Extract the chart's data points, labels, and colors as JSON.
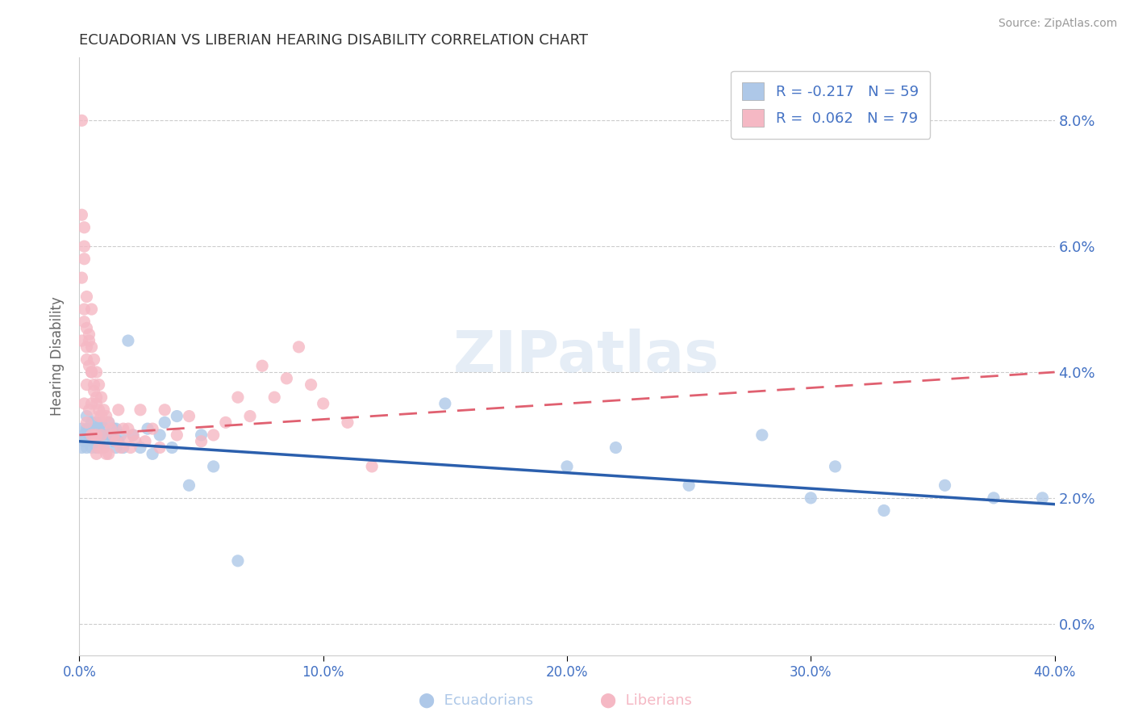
{
  "title": "ECUADORIAN VS LIBERIAN HEARING DISABILITY CORRELATION CHART",
  "source": "Source: ZipAtlas.com",
  "ylabel": "Hearing Disability",
  "xlim": [
    0.0,
    0.4
  ],
  "ylim": [
    -0.005,
    0.09
  ],
  "yticks": [
    0.0,
    0.02,
    0.04,
    0.06,
    0.08
  ],
  "xticks": [
    0.0,
    0.1,
    0.2,
    0.3,
    0.4
  ],
  "background_color": "#ffffff",
  "grid_color": "#cccccc",
  "title_color": "#333333",
  "axis_label_color": "#4472c4",
  "ecuadorians_color": "#aec8e8",
  "liberians_color": "#f5b8c4",
  "ecuadorians_line_color": "#2b5fad",
  "liberians_line_color": "#e06070",
  "legend_r1": "R = -0.217",
  "legend_n1": "N = 59",
  "legend_r2": "R = 0.062",
  "legend_n2": "N = 79",
  "watermark": "ZIPatlas",
  "ecu_trend_x0": 0.0,
  "ecu_trend_y0": 0.029,
  "ecu_trend_x1": 0.4,
  "ecu_trend_y1": 0.019,
  "lib_trend_x0": 0.0,
  "lib_trend_y0": 0.03,
  "lib_trend_x1": 0.4,
  "lib_trend_y1": 0.04,
  "ecuadorians_x": [
    0.001,
    0.001,
    0.002,
    0.002,
    0.003,
    0.003,
    0.003,
    0.004,
    0.004,
    0.005,
    0.005,
    0.005,
    0.006,
    0.006,
    0.007,
    0.007,
    0.007,
    0.008,
    0.008,
    0.008,
    0.009,
    0.009,
    0.01,
    0.01,
    0.01,
    0.011,
    0.012,
    0.013,
    0.014,
    0.014,
    0.015,
    0.015,
    0.016,
    0.017,
    0.018,
    0.02,
    0.022,
    0.025,
    0.028,
    0.03,
    0.033,
    0.035,
    0.038,
    0.04,
    0.045,
    0.05,
    0.055,
    0.065,
    0.15,
    0.2,
    0.22,
    0.25,
    0.28,
    0.3,
    0.31,
    0.33,
    0.355,
    0.375,
    0.395
  ],
  "ecuadorians_y": [
    0.028,
    0.031,
    0.03,
    0.029,
    0.031,
    0.028,
    0.033,
    0.03,
    0.031,
    0.029,
    0.032,
    0.028,
    0.031,
    0.029,
    0.03,
    0.028,
    0.032,
    0.029,
    0.031,
    0.028,
    0.03,
    0.032,
    0.029,
    0.031,
    0.028,
    0.03,
    0.032,
    0.03,
    0.031,
    0.029,
    0.028,
    0.031,
    0.029,
    0.03,
    0.028,
    0.045,
    0.03,
    0.028,
    0.031,
    0.027,
    0.03,
    0.032,
    0.028,
    0.033,
    0.022,
    0.03,
    0.025,
    0.01,
    0.035,
    0.025,
    0.028,
    0.022,
    0.03,
    0.02,
    0.025,
    0.018,
    0.022,
    0.02,
    0.02
  ],
  "liberians_x": [
    0.001,
    0.001,
    0.001,
    0.001,
    0.002,
    0.002,
    0.002,
    0.002,
    0.003,
    0.003,
    0.003,
    0.003,
    0.004,
    0.004,
    0.004,
    0.005,
    0.005,
    0.005,
    0.005,
    0.005,
    0.006,
    0.006,
    0.006,
    0.007,
    0.007,
    0.007,
    0.007,
    0.008,
    0.008,
    0.008,
    0.009,
    0.009,
    0.01,
    0.01,
    0.011,
    0.011,
    0.012,
    0.012,
    0.013,
    0.014,
    0.015,
    0.016,
    0.017,
    0.018,
    0.019,
    0.02,
    0.021,
    0.022,
    0.023,
    0.025,
    0.027,
    0.03,
    0.033,
    0.035,
    0.04,
    0.045,
    0.05,
    0.055,
    0.06,
    0.065,
    0.07,
    0.075,
    0.08,
    0.085,
    0.09,
    0.095,
    0.1,
    0.11,
    0.12,
    0.002,
    0.002,
    0.003,
    0.003,
    0.004,
    0.005,
    0.006,
    0.007,
    0.008,
    0.009
  ],
  "liberians_y": [
    0.08,
    0.065,
    0.055,
    0.045,
    0.063,
    0.058,
    0.048,
    0.035,
    0.052,
    0.044,
    0.038,
    0.032,
    0.046,
    0.041,
    0.034,
    0.044,
    0.04,
    0.035,
    0.05,
    0.03,
    0.042,
    0.037,
    0.03,
    0.04,
    0.035,
    0.03,
    0.027,
    0.038,
    0.033,
    0.028,
    0.036,
    0.03,
    0.034,
    0.028,
    0.033,
    0.027,
    0.032,
    0.027,
    0.031,
    0.03,
    0.029,
    0.034,
    0.028,
    0.031,
    0.029,
    0.031,
    0.028,
    0.03,
    0.029,
    0.034,
    0.029,
    0.031,
    0.028,
    0.034,
    0.03,
    0.033,
    0.029,
    0.03,
    0.032,
    0.036,
    0.033,
    0.041,
    0.036,
    0.039,
    0.044,
    0.038,
    0.035,
    0.032,
    0.025,
    0.06,
    0.05,
    0.047,
    0.042,
    0.045,
    0.04,
    0.038,
    0.036,
    0.034,
    0.033
  ]
}
